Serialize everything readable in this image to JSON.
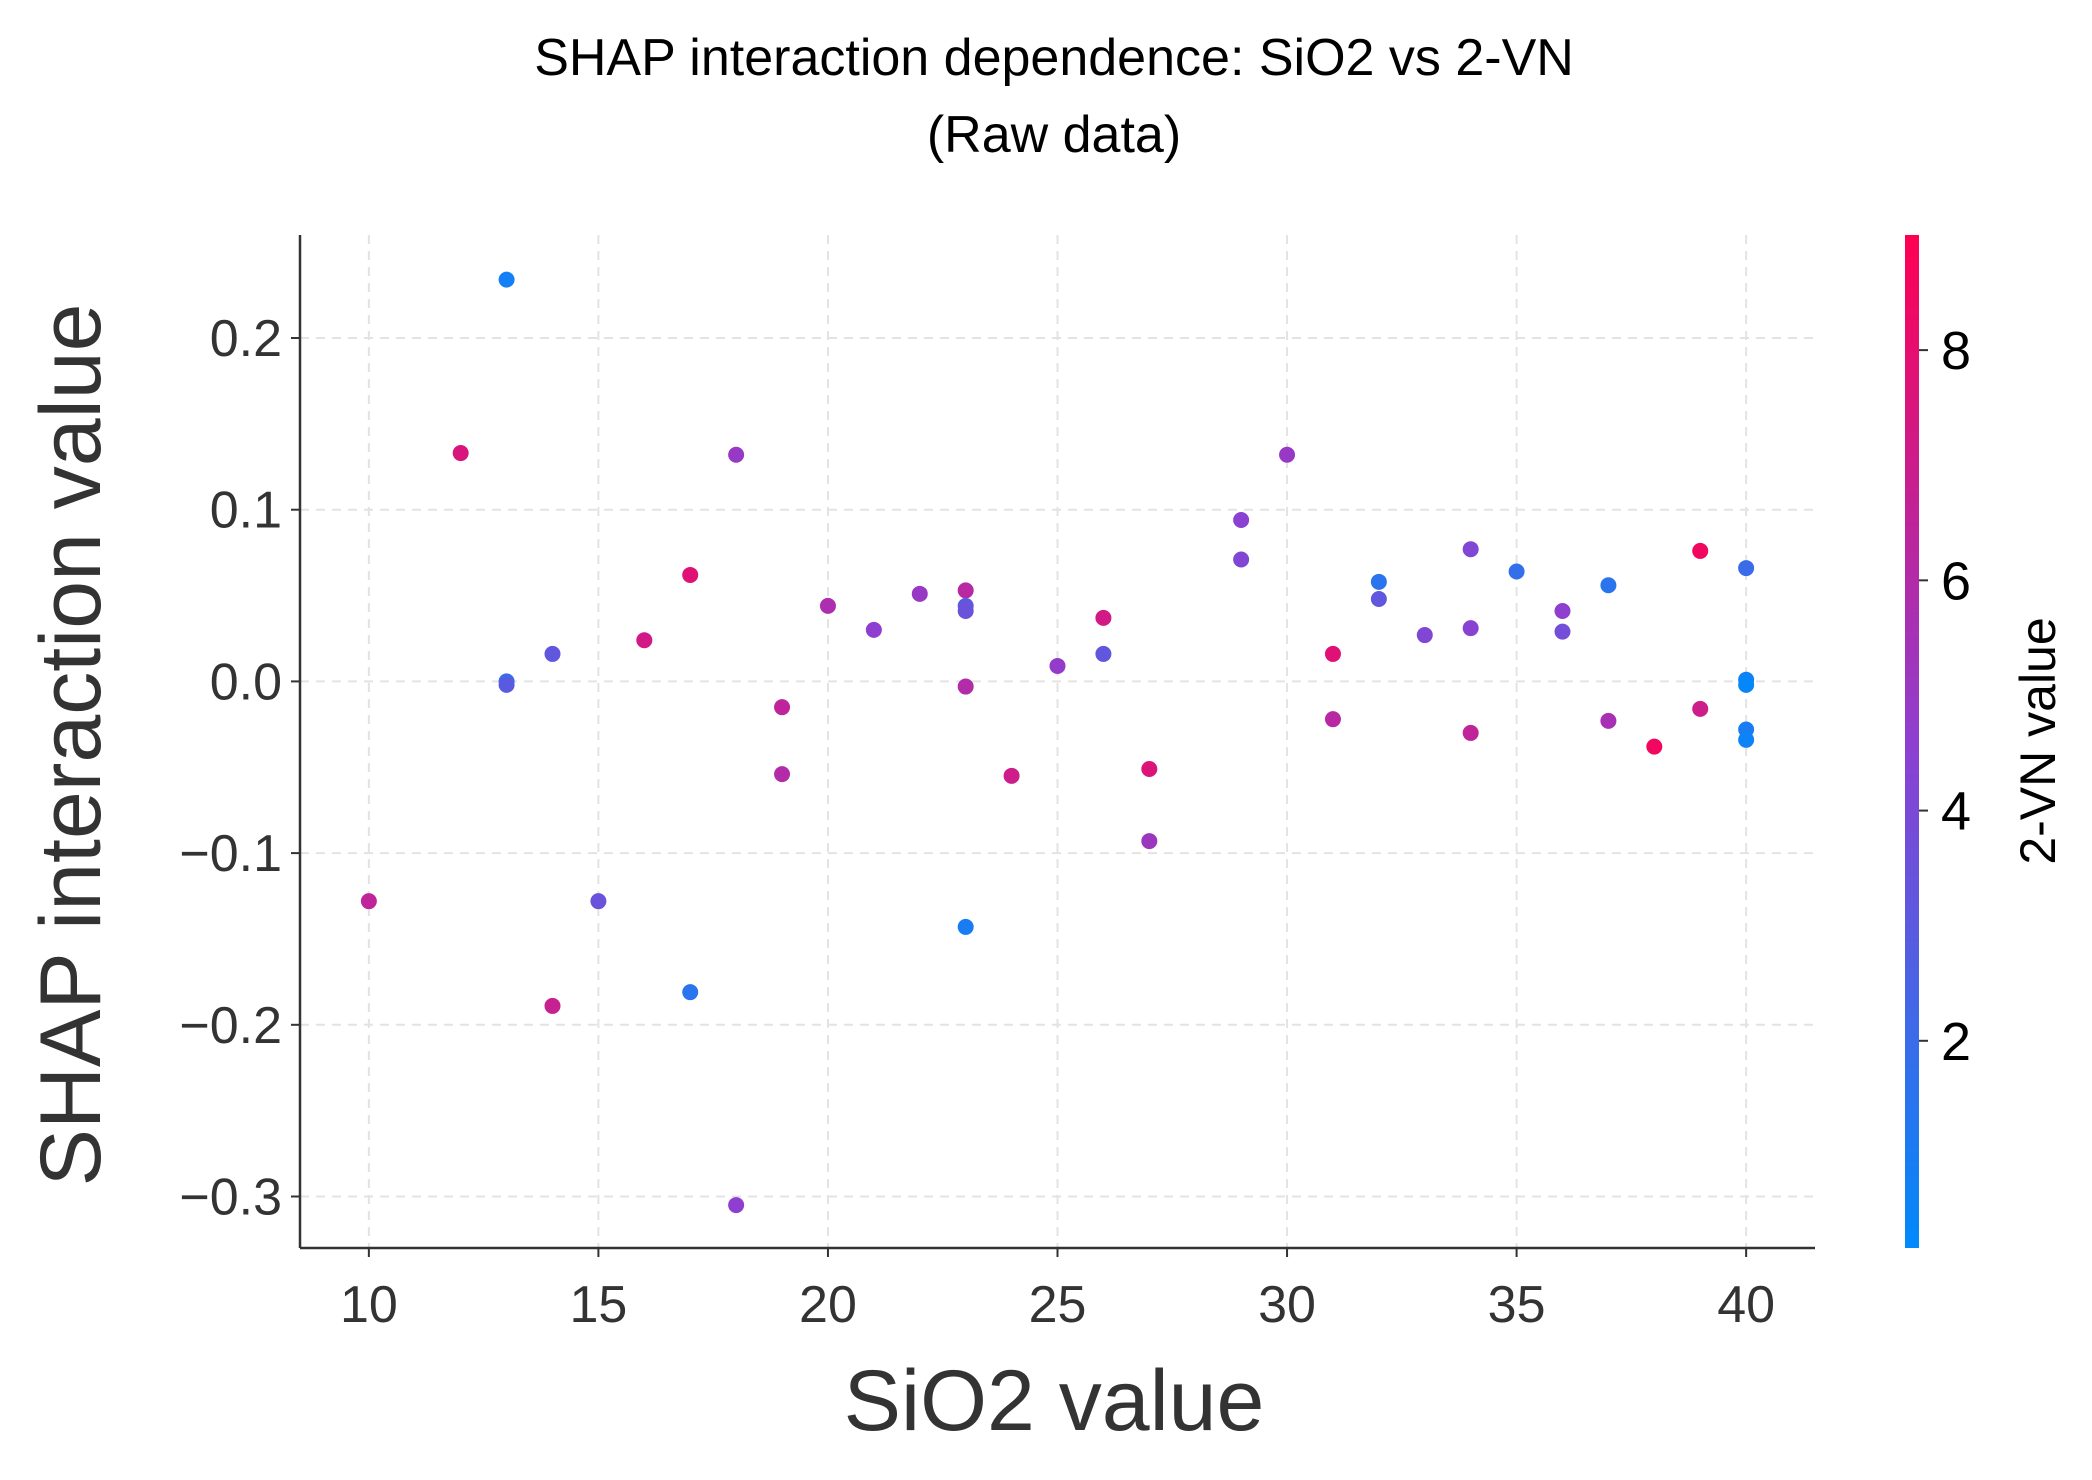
{
  "chart_data": {
    "type": "scatter",
    "title": "SHAP interaction dependence: SiO2 vs 2-VN",
    "subtitle": "(Raw data)",
    "xlabel": "SiO2 value",
    "ylabel": "SHAP interaction value",
    "colorbar_label": "2-VN value",
    "xlim": [
      8.5,
      41.5
    ],
    "ylim": [
      -0.33,
      0.26
    ],
    "xticks": [
      10,
      15,
      20,
      25,
      30,
      35,
      40
    ],
    "yticks": [
      0.2,
      0.1,
      0.0,
      -0.1,
      -0.2,
      -0.3
    ],
    "ytick_labels": [
      "0.2",
      "0.1",
      "0.0",
      "−0.1",
      "−0.2",
      "−0.3"
    ],
    "xtick_labels": [
      "10",
      "15",
      "20",
      "25",
      "30",
      "35",
      "40"
    ],
    "grid": true,
    "colorbar": {
      "range": [
        0.2,
        9.0
      ],
      "ticks": [
        2,
        4,
        6,
        8
      ],
      "tick_labels": [
        "2",
        "4",
        "6",
        "8"
      ],
      "color_low": "#008afb",
      "color_mid": "#8e3fd0",
      "color_high": "#ff0052"
    },
    "points": [
      {
        "x": 10,
        "y": -0.128,
        "c": 6.5
      },
      {
        "x": 12,
        "y": 0.133,
        "c": 7.5
      },
      {
        "x": 13,
        "y": 0.234,
        "c": 0.8
      },
      {
        "x": 13,
        "y": 0.0,
        "c": 2.0
      },
      {
        "x": 13,
        "y": -0.002,
        "c": 3.0
      },
      {
        "x": 14,
        "y": 0.016,
        "c": 3.2
      },
      {
        "x": 14,
        "y": -0.189,
        "c": 6.8
      },
      {
        "x": 15,
        "y": -0.128,
        "c": 3.5
      },
      {
        "x": 16,
        "y": 0.024,
        "c": 7.2
      },
      {
        "x": 17,
        "y": 0.062,
        "c": 7.8
      },
      {
        "x": 17,
        "y": -0.181,
        "c": 1.5
      },
      {
        "x": 18,
        "y": 0.132,
        "c": 5.0
      },
      {
        "x": 18,
        "y": -0.305,
        "c": 4.6
      },
      {
        "x": 19,
        "y": -0.015,
        "c": 6.5
      },
      {
        "x": 19,
        "y": -0.054,
        "c": 6.0
      },
      {
        "x": 20,
        "y": 0.044,
        "c": 5.8
      },
      {
        "x": 21,
        "y": 0.03,
        "c": 4.6
      },
      {
        "x": 22,
        "y": 0.051,
        "c": 5.0
      },
      {
        "x": 23,
        "y": 0.053,
        "c": 6.2
      },
      {
        "x": 23,
        "y": 0.044,
        "c": 3.2
      },
      {
        "x": 23,
        "y": 0.041,
        "c": 3.5
      },
      {
        "x": 23,
        "y": -0.003,
        "c": 6.0
      },
      {
        "x": 23,
        "y": -0.143,
        "c": 1.0
      },
      {
        "x": 24,
        "y": -0.055,
        "c": 7.0
      },
      {
        "x": 25,
        "y": 0.009,
        "c": 4.8
      },
      {
        "x": 26,
        "y": 0.037,
        "c": 7.2
      },
      {
        "x": 26,
        "y": 0.016,
        "c": 3.2
      },
      {
        "x": 27,
        "y": -0.051,
        "c": 7.6
      },
      {
        "x": 27,
        "y": -0.093,
        "c": 5.2
      },
      {
        "x": 29,
        "y": 0.094,
        "c": 4.5
      },
      {
        "x": 29,
        "y": 0.071,
        "c": 4.2
      },
      {
        "x": 30,
        "y": 0.132,
        "c": 5.0
      },
      {
        "x": 31,
        "y": 0.016,
        "c": 7.8
      },
      {
        "x": 31,
        "y": -0.022,
        "c": 6.2
      },
      {
        "x": 32,
        "y": 0.058,
        "c": 1.5
      },
      {
        "x": 32,
        "y": 0.048,
        "c": 3.2
      },
      {
        "x": 33,
        "y": 0.027,
        "c": 4.2
      },
      {
        "x": 34,
        "y": 0.077,
        "c": 4.2
      },
      {
        "x": 34,
        "y": 0.031,
        "c": 4.4
      },
      {
        "x": 34,
        "y": -0.03,
        "c": 6.5
      },
      {
        "x": 35,
        "y": 0.064,
        "c": 1.8
      },
      {
        "x": 36,
        "y": 0.041,
        "c": 4.6
      },
      {
        "x": 36,
        "y": 0.029,
        "c": 3.8
      },
      {
        "x": 37,
        "y": 0.056,
        "c": 1.5
      },
      {
        "x": 37,
        "y": -0.023,
        "c": 5.6
      },
      {
        "x": 38,
        "y": -0.038,
        "c": 8.5
      },
      {
        "x": 39,
        "y": 0.076,
        "c": 8.5
      },
      {
        "x": 39,
        "y": -0.016,
        "c": 7.0
      },
      {
        "x": 40,
        "y": 0.066,
        "c": 2.0
      },
      {
        "x": 40,
        "y": 0.001,
        "c": 0.6
      },
      {
        "x": 40,
        "y": -0.002,
        "c": 0.4
      },
      {
        "x": 40,
        "y": -0.028,
        "c": 1.0
      },
      {
        "x": 40,
        "y": -0.034,
        "c": 0.6
      }
    ]
  }
}
